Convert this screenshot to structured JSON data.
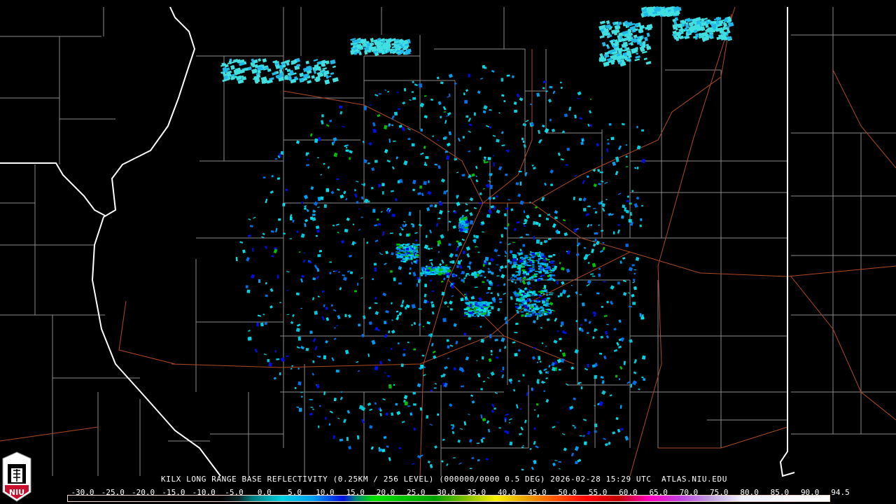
{
  "product_title": "KILX LONG RANGE BASE REFLECTIVITY (0.25KM / 256 LEVEL) (000000/0000 0.5 DEG) 2026-02-28 15:29 UTC  ATLAS.NIU.EDU",
  "logo_text": "NIU",
  "colorbar": {
    "labels": [
      "-30.0",
      "-25.0",
      "-20.0",
      "-15.0",
      "-10.0",
      "-5.0",
      "0.0",
      "5.0",
      "10.0",
      "15.0",
      "20.0",
      "25.0",
      "30.0",
      "35.0",
      "40.0",
      "45.0",
      "50.0",
      "55.0",
      "60.0",
      "65.0",
      "70.0",
      "75.0",
      "80.0",
      "85.0",
      "90.0",
      "94.5"
    ],
    "min": -30,
    "max": 94.5,
    "stops": [
      {
        "value": -30,
        "color": "#000000"
      },
      {
        "value": -5,
        "color": "#000000"
      },
      {
        "value": -2,
        "color": "#0a2a2a"
      },
      {
        "value": 0,
        "color": "#007a7a"
      },
      {
        "value": 5,
        "color": "#00d0e0"
      },
      {
        "value": 10,
        "color": "#00a0f0"
      },
      {
        "value": 15,
        "color": "#0010e0"
      },
      {
        "value": 17,
        "color": "#008080"
      },
      {
        "value": 20,
        "color": "#00e000"
      },
      {
        "value": 30,
        "color": "#00a000"
      },
      {
        "value": 35,
        "color": "#80c000"
      },
      {
        "value": 40,
        "color": "#f8f000"
      },
      {
        "value": 45,
        "color": "#e8a000"
      },
      {
        "value": 50,
        "color": "#ff5000"
      },
      {
        "value": 55,
        "color": "#ff0000"
      },
      {
        "value": 60,
        "color": "#c00000"
      },
      {
        "value": 65,
        "color": "#ff00c0"
      },
      {
        "value": 70,
        "color": "#c040e0"
      },
      {
        "value": 75,
        "color": "#c0a0e0"
      },
      {
        "value": 80,
        "color": "#f0f0ff"
      },
      {
        "value": 94.5,
        "color": "#ffffff"
      }
    ]
  },
  "colors": {
    "state_border": "#ffffff",
    "county_border": "#8a8a8a",
    "highway": "#b04a20",
    "niu_red": "#c8102e"
  }
}
